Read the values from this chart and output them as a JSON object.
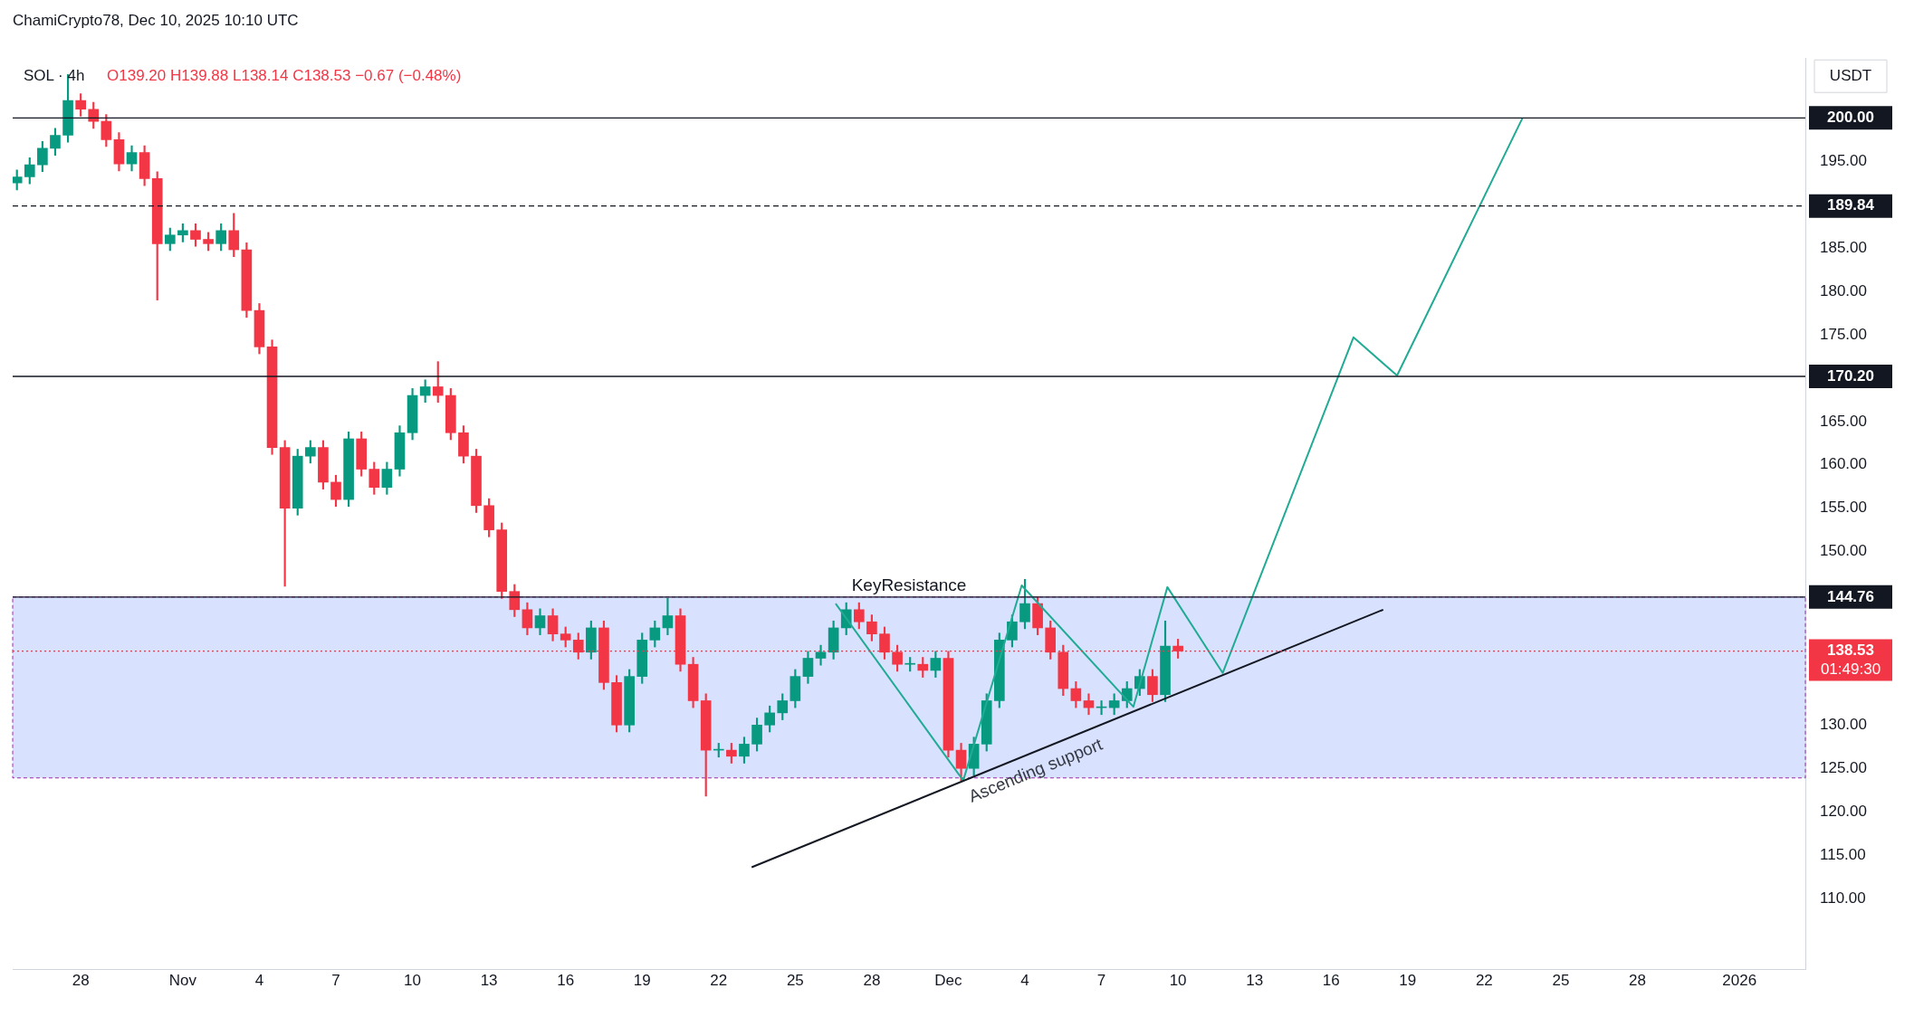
{
  "chart_data": {
    "type": "candlestick",
    "title": "SOL · 4h",
    "subtitle": "O139.20 H139.88 L138.14 C138.53 −0.67 (−0.48%)",
    "ylabel": "USDT",
    "annotations": [
      "ChamiCrypto78, Dec 10, 2025 10:10 UTC",
      "Ascending support",
      "01:49:30"
    ],
    "x": [
      "2025-10-25T12:00",
      "2025-10-26T00:00",
      "2025-10-26T12:00",
      "2025-10-27T00:00",
      "2025-10-27T12:00",
      "2025-10-28T00:00",
      "2025-10-28T12:00",
      "2025-10-29T00:00",
      "2025-10-29T12:00",
      "2025-10-30T00:00",
      "2025-10-30T12:00",
      "2025-10-31T00:00",
      "2025-10-31T12:00",
      "2025-11-01T00:00",
      "2025-11-01T12:00",
      "2025-11-02T00:00",
      "2025-11-02T12:00",
      "2025-11-03T00:00",
      "2025-11-03T12:00",
      "2025-11-04T00:00",
      "2025-11-04T12:00",
      "2025-11-05T00:00",
      "2025-11-05T12:00",
      "2025-11-06T00:00",
      "2025-11-06T12:00",
      "2025-11-07T00:00",
      "2025-11-07T12:00",
      "2025-11-08T00:00",
      "2025-11-08T12:00",
      "2025-11-09T00:00",
      "2025-11-09T12:00",
      "2025-11-10T00:00",
      "2025-11-10T12:00",
      "2025-11-11T00:00",
      "2025-11-11T12:00",
      "2025-11-12T00:00",
      "2025-11-12T12:00",
      "2025-11-13T00:00",
      "2025-11-13T12:00",
      "2025-11-14T00:00",
      "2025-11-14T12:00",
      "2025-11-15T00:00",
      "2025-11-15T12:00",
      "2025-11-16T00:00",
      "2025-11-16T12:00",
      "2025-11-17T00:00",
      "2025-11-17T12:00",
      "2025-11-18T00:00",
      "2025-11-18T12:00",
      "2025-11-19T00:00",
      "2025-11-19T12:00",
      "2025-11-20T00:00",
      "2025-11-20T12:00",
      "2025-11-21T00:00",
      "2025-11-21T12:00",
      "2025-11-22T00:00",
      "2025-11-22T12:00",
      "2025-11-23T00:00",
      "2025-11-23T12:00",
      "2025-11-24T00:00",
      "2025-11-24T12:00",
      "2025-11-25T00:00",
      "2025-11-25T12:00",
      "2025-11-26T00:00",
      "2025-11-26T12:00",
      "2025-11-27T00:00",
      "2025-11-27T12:00",
      "2025-11-28T00:00",
      "2025-11-28T12:00",
      "2025-11-29T00:00",
      "2025-11-29T12:00",
      "2025-11-30T00:00",
      "2025-11-30T12:00",
      "2025-12-01T00:00",
      "2025-12-01T12:00",
      "2025-12-02T00:00",
      "2025-12-02T12:00",
      "2025-12-03T00:00",
      "2025-12-03T12:00",
      "2025-12-04T00:00",
      "2025-12-04T12:00",
      "2025-12-05T00:00",
      "2025-12-05T12:00",
      "2025-12-06T00:00",
      "2025-12-06T12:00",
      "2025-12-07T00:00",
      "2025-12-07T12:00",
      "2025-12-08T00:00",
      "2025-12-08T12:00",
      "2025-12-09T00:00",
      "2025-12-09T12:00",
      "2025-12-10T00:00"
    ],
    "ohlc": [
      [
        192.5,
        194.0,
        191.7,
        193.2
      ],
      [
        193.2,
        195.4,
        192.4,
        194.6
      ],
      [
        194.6,
        197.3,
        193.8,
        196.5
      ],
      [
        196.5,
        198.8,
        195.7,
        198
      ],
      [
        198,
        205,
        197.2,
        202
      ],
      [
        202,
        202.8,
        200.2,
        201
      ],
      [
        201,
        201.8,
        198.8,
        199.6
      ],
      [
        199.6,
        200.4,
        196.7,
        197.5
      ],
      [
        197.5,
        198.3,
        193.9,
        194.7
      ],
      [
        194.7,
        196.8,
        193.9,
        196
      ],
      [
        196,
        196.8,
        192.2,
        193
      ],
      [
        193,
        193.8,
        179,
        185.5
      ],
      [
        185.5,
        187.3,
        184.7,
        186.5
      ],
      [
        186.5,
        187.8,
        185.7,
        187
      ],
      [
        187,
        187.8,
        185.2,
        186
      ],
      [
        186,
        186.8,
        184.7,
        185.5
      ],
      [
        185.5,
        187.8,
        184.7,
        187
      ],
      [
        187,
        189,
        184,
        184.8
      ],
      [
        184.8,
        185.6,
        177,
        177.8
      ],
      [
        177.8,
        178.6,
        172.8,
        173.6
      ],
      [
        173.6,
        174.4,
        161.2,
        162
      ],
      [
        162,
        162.8,
        146,
        155
      ],
      [
        155,
        161.8,
        154.2,
        161
      ],
      [
        161,
        162.8,
        160.2,
        162
      ],
      [
        162,
        162.8,
        157.2,
        158
      ],
      [
        158,
        158.8,
        155.2,
        156
      ],
      [
        156,
        163.8,
        155.2,
        163
      ],
      [
        163,
        163.8,
        158.7,
        159.5
      ],
      [
        159.5,
        160.3,
        156.6,
        157.4
      ],
      [
        157.4,
        160.3,
        156.6,
        159.5
      ],
      [
        159.5,
        164.5,
        158.7,
        163.7
      ],
      [
        163.7,
        168.8,
        162.9,
        168
      ],
      [
        168,
        169.8,
        167.2,
        169
      ],
      [
        169,
        171.9,
        167.2,
        168
      ],
      [
        168,
        168.8,
        162.9,
        163.7
      ],
      [
        163.7,
        164.5,
        160.2,
        161
      ],
      [
        161,
        161.8,
        154.5,
        155.3
      ],
      [
        155.3,
        156.1,
        151.7,
        152.5
      ],
      [
        152.5,
        153.3,
        144.6,
        145.4
      ],
      [
        145.4,
        146.2,
        142.5,
        143.3
      ],
      [
        143.3,
        144.1,
        140.4,
        141.2
      ],
      [
        141.2,
        143.4,
        140.4,
        142.6
      ],
      [
        142.6,
        143.4,
        139.7,
        140.5
      ],
      [
        140.5,
        141.3,
        139,
        139.8
      ],
      [
        139.8,
        140.6,
        137.6,
        138.4
      ],
      [
        138.4,
        142,
        137.6,
        141.2
      ],
      [
        141.2,
        142,
        134.1,
        134.9
      ],
      [
        134.9,
        135.7,
        129.2,
        130
      ],
      [
        130,
        136.4,
        129.2,
        135.6
      ],
      [
        135.6,
        140.6,
        134.8,
        139.8
      ],
      [
        139.8,
        142,
        139,
        141.2
      ],
      [
        141.2,
        144.6,
        140.4,
        142.6
      ],
      [
        142.6,
        143.4,
        136.2,
        137
      ],
      [
        137,
        137.8,
        132,
        132.8
      ],
      [
        132.8,
        133.6,
        121.8,
        127.1
      ],
      [
        127.1,
        127.9,
        126.3,
        127.1
      ],
      [
        127.1,
        127.9,
        125.6,
        126.4
      ],
      [
        126.4,
        128.6,
        125.6,
        127.8
      ],
      [
        127.8,
        130.8,
        127,
        130
      ],
      [
        130,
        132.2,
        129.2,
        131.4
      ],
      [
        131.4,
        133.6,
        130.6,
        132.8
      ],
      [
        132.8,
        136.4,
        132,
        135.6
      ],
      [
        135.6,
        138.5,
        134.8,
        137.7
      ],
      [
        137.7,
        139.2,
        136.9,
        138.4
      ],
      [
        138.4,
        142,
        137.6,
        141.2
      ],
      [
        141.2,
        144.1,
        140.4,
        143.3
      ],
      [
        143.3,
        144.1,
        141.1,
        141.9
      ],
      [
        141.9,
        142.7,
        139.7,
        140.5
      ],
      [
        140.5,
        141.3,
        137.6,
        138.4
      ],
      [
        138.4,
        139.2,
        136.2,
        137
      ],
      [
        137,
        137.8,
        136.2,
        137
      ],
      [
        137,
        137.8,
        135.5,
        136.3
      ],
      [
        136.3,
        138.5,
        135.5,
        137.7
      ],
      [
        137.7,
        138.5,
        126.3,
        127.1
      ],
      [
        127.1,
        127.9,
        123.6,
        125
      ],
      [
        125,
        128.6,
        124.2,
        127.8
      ],
      [
        127.8,
        133.6,
        127,
        132.8
      ],
      [
        132.8,
        140.6,
        132,
        139.8
      ],
      [
        139.8,
        142.7,
        139,
        141.9
      ],
      [
        141.9,
        146.8,
        141.1,
        144
      ],
      [
        144,
        144.8,
        140.4,
        141.2
      ],
      [
        141.2,
        142,
        137.6,
        138.4
      ],
      [
        138.4,
        139.2,
        133.4,
        134.2
      ],
      [
        134.2,
        135,
        132,
        132.8
      ],
      [
        132.8,
        133.6,
        131.2,
        132
      ],
      [
        132,
        132.8,
        131.2,
        132
      ],
      [
        132,
        133.6,
        131.2,
        132.8
      ],
      [
        132.8,
        135,
        132,
        134.2
      ],
      [
        134.2,
        136.4,
        133.4,
        135.6
      ],
      [
        135.6,
        136.4,
        132.7,
        133.5
      ],
      [
        133.5,
        142,
        132.7,
        139.1
      ],
      [
        139.1,
        139.9,
        137.7,
        138.53
      ]
    ],
    "series": [
      {
        "type": "line",
        "color": "#131722",
        "x": [
          "2025-11-23T07:00",
          "2025-12-18T01:00"
        ],
        "values": [
          113.6,
          143.3
        ]
      },
      {
        "type": "line",
        "color": "#22ab94",
        "x": [
          "2025-11-26T14:00",
          "2025-12-01T14:00",
          "2025-12-03T21:00",
          "2025-12-08T06:00",
          "2025-12-09T14:00",
          "2025-12-11T18:00",
          "2025-12-16T21:00",
          "2025-12-18T14:00",
          "2025-12-23T12:00"
        ],
        "values": [
          144.0,
          123.6,
          146.1,
          132.1,
          145.9,
          136.0,
          174.7,
          170.3,
          200
        ]
      }
    ],
    "ref_lines": [
      {
        "axis": "y",
        "value": 200,
        "color": "#131722",
        "line_style": "solid",
        "label": "200.00"
      },
      {
        "axis": "y",
        "value": 189.84,
        "color": "#131722",
        "line_style": "dashed",
        "label": "189.84"
      },
      {
        "axis": "y",
        "value": 170.2,
        "color": "#131722",
        "line_style": "solid",
        "label": "170.20"
      },
      {
        "axis": "y",
        "value": 144.76,
        "color": "#131722",
        "line_style": "solid",
        "label": "144.76"
      },
      {
        "axis": "y",
        "value": 138.53,
        "color": "#f23645",
        "line_style": "dotted",
        "label": "138.53"
      }
    ],
    "bands": [
      {
        "axis": "y",
        "from": 123.9,
        "to": 144.76,
        "label": "KeyResistance",
        "color": "#d1dcfe"
      }
    ],
    "xlim": [
      "2025-10-25T08:00",
      "2026-01-03T14:00"
    ],
    "xticks": [
      {
        "value": "2025-10-28",
        "label": "28"
      },
      {
        "value": "2025-11-01",
        "label": "Nov"
      },
      {
        "value": "2025-11-04",
        "label": "4"
      },
      {
        "value": "2025-11-07",
        "label": "7"
      },
      {
        "value": "2025-11-10",
        "label": "10"
      },
      {
        "value": "2025-11-13",
        "label": "13"
      },
      {
        "value": "2025-11-16",
        "label": "16"
      },
      {
        "value": "2025-11-19",
        "label": "19"
      },
      {
        "value": "2025-11-22",
        "label": "22"
      },
      {
        "value": "2025-11-25",
        "label": "25"
      },
      {
        "value": "2025-11-28",
        "label": "28"
      },
      {
        "value": "2025-12-01",
        "label": "Dec"
      },
      {
        "value": "2025-12-04",
        "label": "4"
      },
      {
        "value": "2025-12-07",
        "label": "7"
      },
      {
        "value": "2025-12-10",
        "label": "10"
      },
      {
        "value": "2025-12-13",
        "label": "13"
      },
      {
        "value": "2025-12-16",
        "label": "16"
      },
      {
        "value": "2025-12-19",
        "label": "19"
      },
      {
        "value": "2025-12-22",
        "label": "22"
      },
      {
        "value": "2025-12-25",
        "label": "25"
      },
      {
        "value": "2025-12-28",
        "label": "28"
      },
      {
        "value": "2026-01-01",
        "label": "2026"
      }
    ],
    "ylim": [
      101.8,
      206.9
    ],
    "yticks": [
      {
        "value": 110,
        "label": "110.00"
      },
      {
        "value": 115,
        "label": "115.00"
      },
      {
        "value": 120,
        "label": "120.00"
      },
      {
        "value": 125,
        "label": "125.00"
      },
      {
        "value": 130,
        "label": "130.00"
      },
      {
        "value": 150,
        "label": "150.00"
      },
      {
        "value": 155,
        "label": "155.00"
      },
      {
        "value": 160,
        "label": "160.00"
      },
      {
        "value": 165,
        "label": "165.00"
      },
      {
        "value": 175,
        "label": "175.00"
      },
      {
        "value": 180,
        "label": "180.00"
      },
      {
        "value": 185,
        "label": "185.00"
      },
      {
        "value": 195,
        "label": "195.00"
      }
    ],
    "grid": false,
    "legend": false,
    "marker": "none"
  }
}
